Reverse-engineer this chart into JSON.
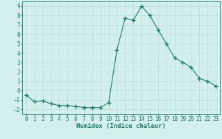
{
  "x": [
    0,
    1,
    2,
    3,
    4,
    5,
    6,
    7,
    8,
    9,
    10,
    11,
    12,
    13,
    14,
    15,
    16,
    17,
    18,
    19,
    20,
    21,
    22,
    23
  ],
  "y": [
    -0.5,
    -1.2,
    -1.1,
    -1.4,
    -1.6,
    -1.6,
    -1.7,
    -1.8,
    -1.8,
    -1.8,
    -1.3,
    4.3,
    7.7,
    7.5,
    9.0,
    8.0,
    6.5,
    5.0,
    3.5,
    3.0,
    2.5,
    1.3,
    1.0,
    0.5
  ],
  "line_color": "#1a7a6a",
  "marker": "+",
  "marker_size": 4,
  "bg_color": "#d4f0ee",
  "grid_color": "#b8dbd8",
  "xlabel": "Humidex (Indice chaleur)",
  "xlim": [
    -0.5,
    23.5
  ],
  "ylim": [
    -2.5,
    9.5
  ],
  "yticks": [
    -2,
    -1,
    0,
    1,
    2,
    3,
    4,
    5,
    6,
    7,
    8,
    9
  ],
  "xticks": [
    0,
    1,
    2,
    3,
    4,
    5,
    6,
    7,
    8,
    9,
    10,
    11,
    12,
    13,
    14,
    15,
    16,
    17,
    18,
    19,
    20,
    21,
    22,
    23
  ],
  "label_fontsize": 6.5,
  "tick_fontsize": 5.5
}
